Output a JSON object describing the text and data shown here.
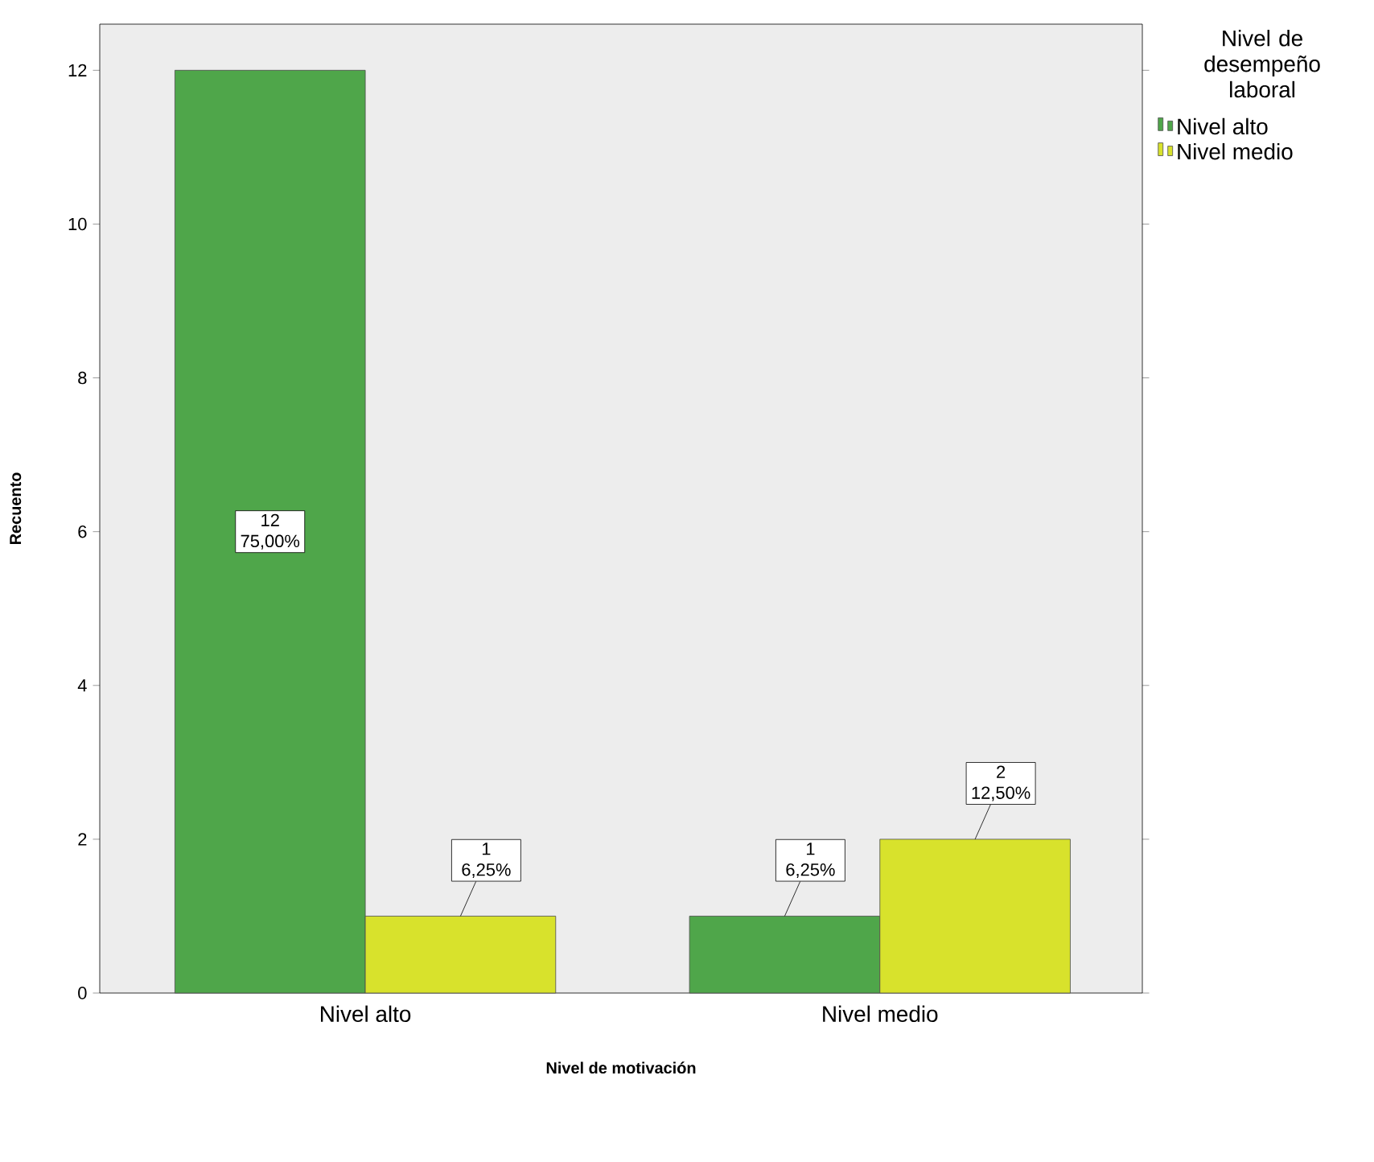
{
  "chart_data": {
    "type": "bar",
    "xlabel": "Nivel de motivación",
    "ylabel": "Recuento",
    "legend_title": "Nivel de desempeño laboral",
    "categories": [
      "Nivel alto",
      "Nivel medio"
    ],
    "series": [
      {
        "name": "Nivel alto",
        "color": "#4fa64a",
        "values": [
          12,
          1
        ],
        "value_labels": [
          "12 75,00%",
          "1 6,25%"
        ]
      },
      {
        "name": "Nivel medio",
        "color": "#d8e22c",
        "values": [
          1,
          2
        ],
        "value_labels": [
          "1 6,25%",
          "2 12,50%"
        ]
      }
    ],
    "ylim": [
      0,
      12.6
    ],
    "yticks": [
      0,
      2,
      4,
      6,
      8,
      10,
      12
    ],
    "grid": false,
    "legend": "top right"
  }
}
